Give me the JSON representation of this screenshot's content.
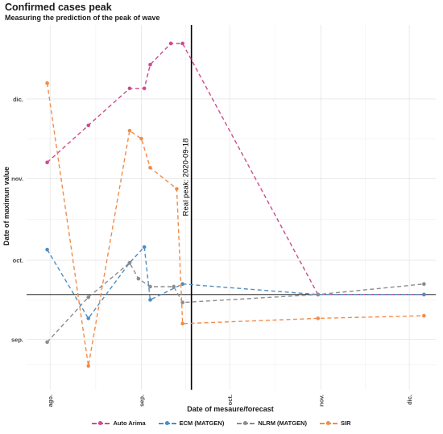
{
  "chart_data": {
    "type": "line",
    "title": "Confirmed cases peak",
    "subtitle": "Measuring the prediction of the peak of wave",
    "xlabel": "Date of mesaure/forecast",
    "ylabel": "Date of maximun value",
    "x_ticks": [
      {
        "label": "ago.",
        "value": "2020-08-01"
      },
      {
        "label": "sep.",
        "value": "2020-09-01"
      },
      {
        "label": "oct.",
        "value": "2020-10-01"
      },
      {
        "label": "nov.",
        "value": "2020-11-01"
      },
      {
        "label": "dic.",
        "value": "2020-12-01"
      }
    ],
    "y_ticks": [
      {
        "label": "sep.",
        "value": "2020-09-01"
      },
      {
        "label": "oct.",
        "value": "2020-10-01"
      },
      {
        "label": "nov.",
        "value": "2020-11-01"
      },
      {
        "label": "dic.",
        "value": "2020-12-01"
      }
    ],
    "xlim": [
      "2020-07-24",
      "2020-12-10"
    ],
    "ylim": [
      "2020-08-13",
      "2020-12-29"
    ],
    "grid": true,
    "legend_position": "bottom",
    "vline": {
      "x": "2020-09-18",
      "label": "Real peak: 2020-09-18"
    },
    "hline": {
      "y": "2020-09-18"
    },
    "series": [
      {
        "name": "Auto Arima",
        "color": "#cc4c8f",
        "x": [
          "2020-07-31",
          "2020-08-14",
          "2020-08-28",
          "2020-09-02",
          "2020-09-04",
          "2020-09-11",
          "2020-09-15",
          "2020-10-31",
          "2020-12-06"
        ],
        "y": [
          "2020-11-07",
          "2020-11-21",
          "2020-12-05",
          "2020-12-05",
          "2020-12-14",
          "2020-12-22",
          "2020-12-22",
          "2020-09-18",
          "2020-09-18"
        ]
      },
      {
        "name": "ECM (MATGEN)",
        "color": "#4f8dc2",
        "x": [
          "2020-07-31",
          "2020-08-14",
          "2020-08-28",
          "2020-09-02",
          "2020-09-04",
          "2020-09-15",
          "2020-10-31",
          "2020-12-06"
        ],
        "y": [
          "2020-10-05",
          "2020-09-09",
          "2020-09-30",
          "2020-10-06",
          "2020-09-16",
          "2020-09-22",
          "2020-09-18",
          "2020-09-18"
        ]
      },
      {
        "name": "NLRM (MATGEN)",
        "color": "#8c8c8c",
        "x": [
          "2020-07-31",
          "2020-08-14",
          "2020-08-28",
          "2020-08-31",
          "2020-09-04",
          "2020-09-12",
          "2020-09-15",
          "2020-10-31",
          "2020-12-06"
        ],
        "y": [
          "2020-08-31",
          "2020-09-17",
          "2020-09-30",
          "2020-09-24",
          "2020-09-21",
          "2020-09-21",
          "2020-09-15",
          "2020-09-18",
          "2020-09-22"
        ]
      },
      {
        "name": "SIR",
        "color": "#f28c48",
        "x": [
          "2020-07-31",
          "2020-08-14",
          "2020-08-28",
          "2020-09-01",
          "2020-09-04",
          "2020-09-13",
          "2020-09-15",
          "2020-10-31",
          "2020-12-06"
        ],
        "y": [
          "2020-12-07",
          "2020-08-22",
          "2020-11-19",
          "2020-11-16",
          "2020-11-05",
          "2020-10-28",
          "2020-09-07",
          "2020-09-09",
          "2020-09-10"
        ]
      }
    ]
  }
}
